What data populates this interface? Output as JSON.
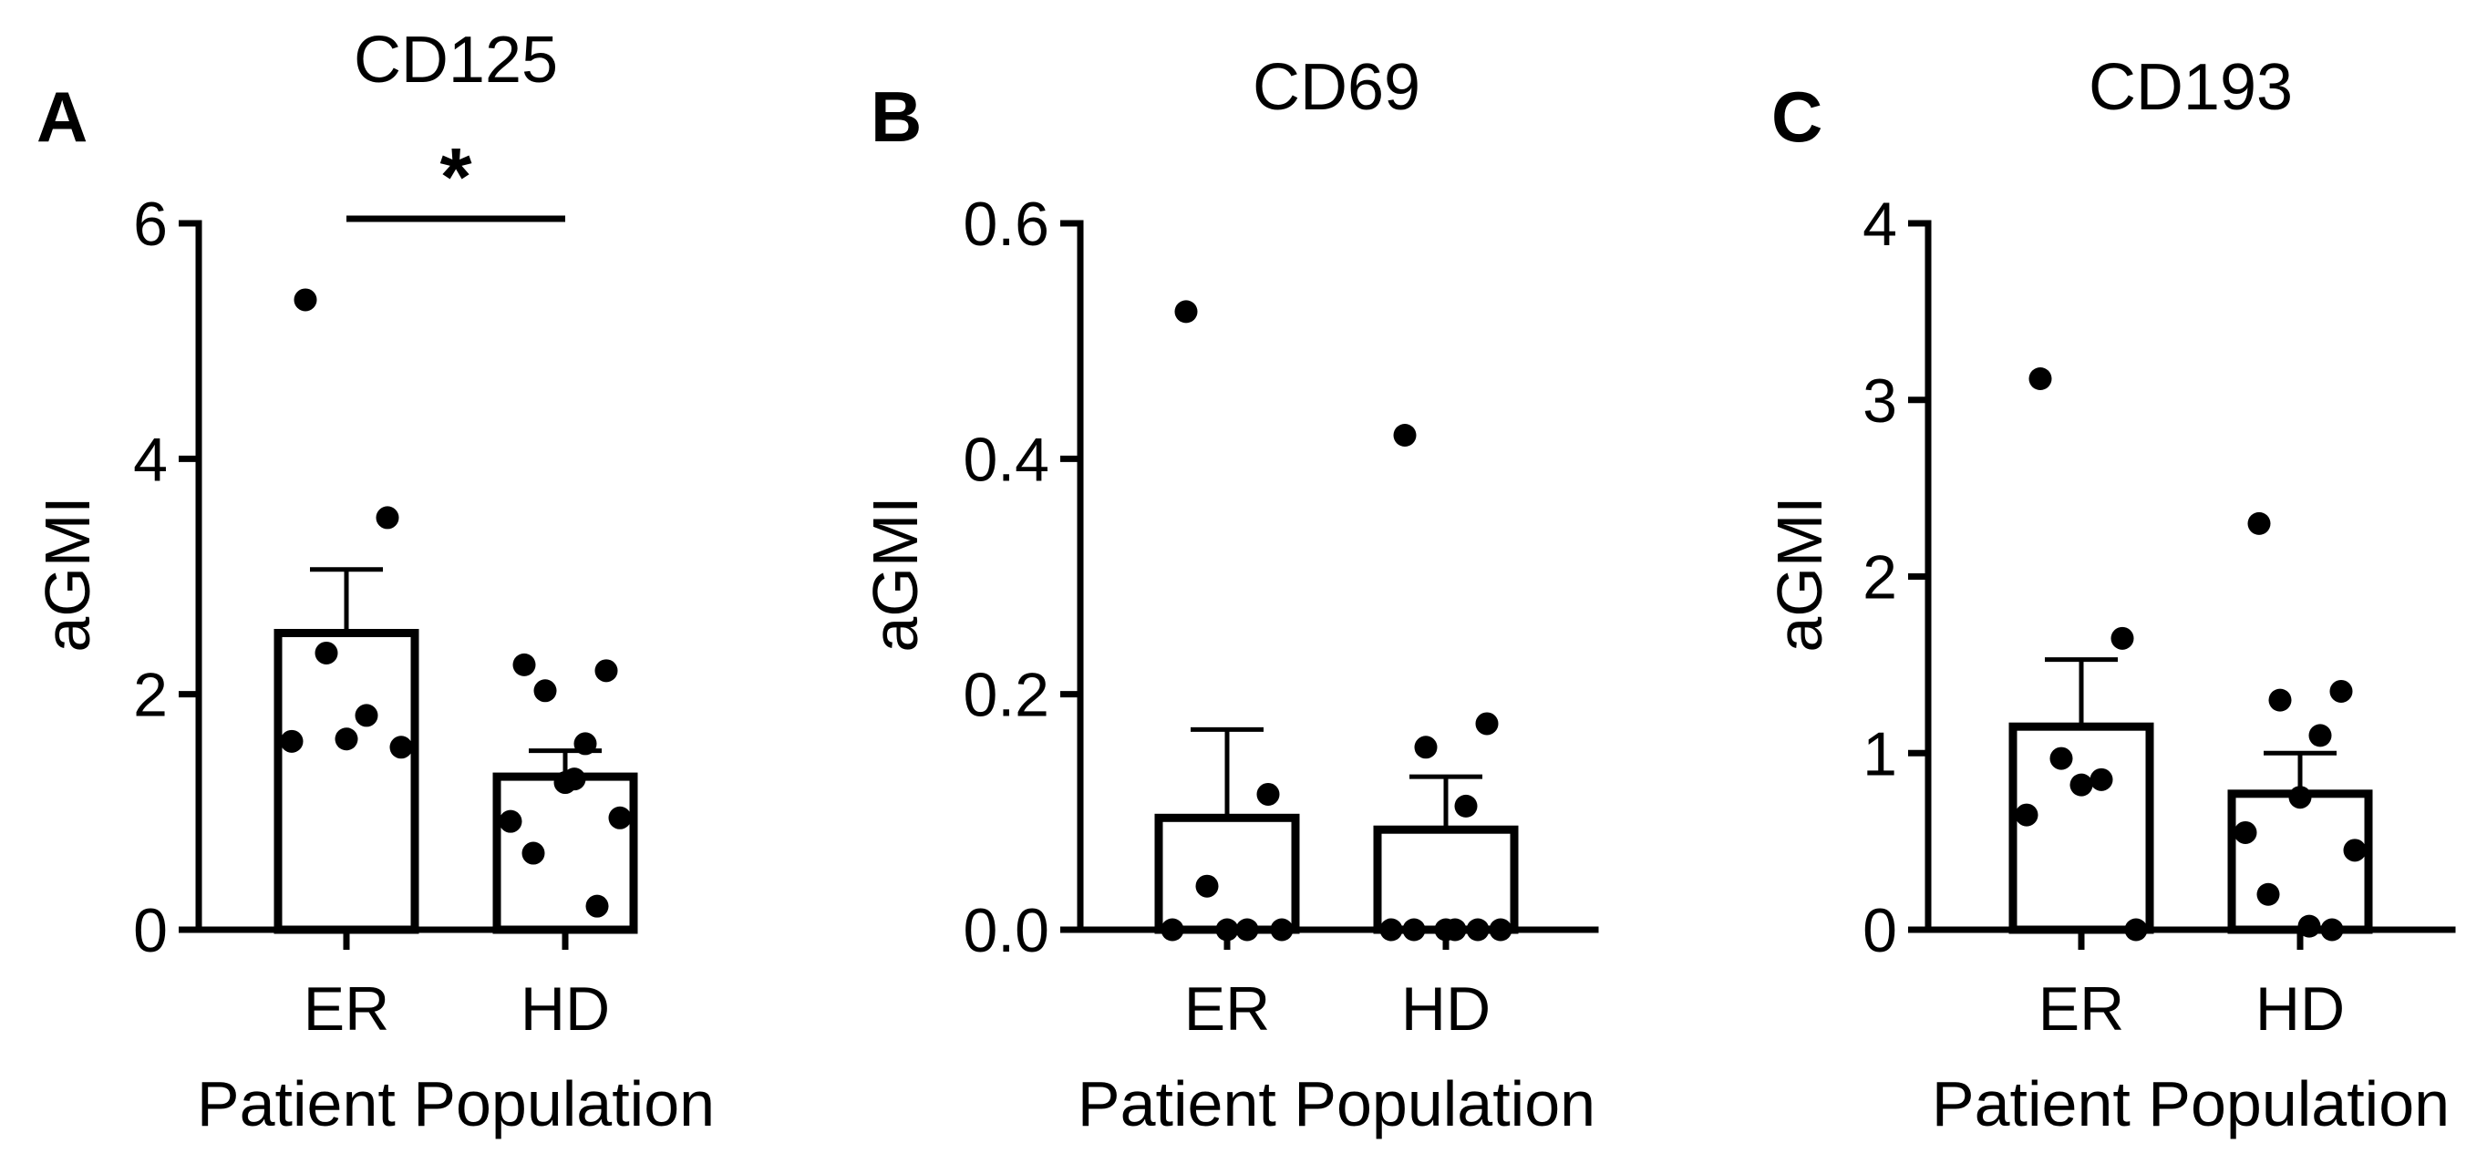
{
  "chart_data": [
    {
      "type": "bar",
      "panel_label": "A",
      "title": "CD125",
      "xlabel": "Patient Population",
      "ylabel": "aGMI",
      "ylim": [
        0,
        6
      ],
      "yticks": [
        0,
        2,
        4,
        6
      ],
      "ytick_labels": [
        "0",
        "2",
        "4",
        "6"
      ],
      "categories": [
        "ER",
        "HD"
      ],
      "values": [
        2.52,
        1.3
      ],
      "sem": [
        0.54,
        0.22
      ],
      "points": [
        [
          5.35,
          3.5,
          2.35,
          1.82,
          1.62,
          1.6,
          1.55
        ],
        [
          2.25,
          2.2,
          2.03,
          1.58,
          1.25,
          0.92,
          0.95,
          0.65,
          0.2,
          1.28
        ]
      ],
      "significance": {
        "between": [
          "ER",
          "HD"
        ],
        "label": "*"
      }
    },
    {
      "type": "bar",
      "panel_label": "B",
      "title": "CD69",
      "xlabel": "Patient Population",
      "ylabel": "aGMI",
      "ylim": [
        0,
        0.6
      ],
      "yticks": [
        0,
        0.2,
        0.4,
        0.6
      ],
      "ytick_labels": [
        "0.0",
        "0.2",
        "0.4",
        "0.6"
      ],
      "categories": [
        "ER",
        "HD"
      ],
      "values": [
        0.095,
        0.085
      ],
      "sem": [
        0.075,
        0.045
      ],
      "points": [
        [
          0.525,
          0.115,
          0.037,
          0.0,
          0.0,
          0.0,
          0.0
        ],
        [
          0.42,
          0.175,
          0.155,
          0.105,
          0.0,
          0.0,
          0.0,
          0.0,
          0.0,
          0.0
        ]
      ],
      "significance": null
    },
    {
      "type": "bar",
      "panel_label": "C",
      "title": "CD193",
      "xlabel": "Patient Population",
      "ylabel": "aGMI",
      "ylim": [
        0,
        4
      ],
      "yticks": [
        0,
        1,
        2,
        3,
        4
      ],
      "ytick_labels": [
        "0",
        "1",
        "2",
        "3",
        "4"
      ],
      "categories": [
        "ER",
        "HD"
      ],
      "values": [
        1.15,
        0.77
      ],
      "sem": [
        0.38,
        0.23
      ],
      "points": [
        [
          3.12,
          1.65,
          0.97,
          0.85,
          0.82,
          0.65,
          0.0
        ],
        [
          2.3,
          1.35,
          1.3,
          1.1,
          0.75,
          0.55,
          0.45,
          0.2,
          0.0,
          0.02
        ]
      ],
      "significance": null
    }
  ]
}
